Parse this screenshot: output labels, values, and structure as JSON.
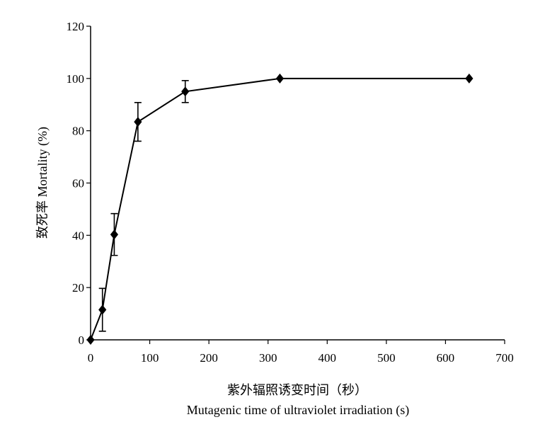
{
  "chart_data": {
    "type": "line",
    "title": "",
    "xlabel_cn": "紫外辐照诱变时间（秒）",
    "xlabel": "Mutagenic time of ultraviolet irradiation (s)",
    "ylabel": "致死率 Mortality (%)",
    "xlim": [
      0,
      700
    ],
    "ylim": [
      0,
      120
    ],
    "xticks": [
      0,
      100,
      200,
      300,
      400,
      500,
      600,
      700
    ],
    "yticks": [
      0,
      20,
      40,
      60,
      80,
      100,
      120
    ],
    "grid": false,
    "legend": "none",
    "marker": "diamond",
    "color": "#000000",
    "series": [
      {
        "x": [
          0,
          20,
          40,
          80,
          160,
          320,
          640
        ],
        "y": [
          0,
          11.5,
          40.3,
          83.4,
          95.0,
          100,
          100
        ],
        "error": [
          0,
          8.2,
          8.0,
          7.4,
          4.2,
          0,
          0
        ]
      }
    ]
  }
}
